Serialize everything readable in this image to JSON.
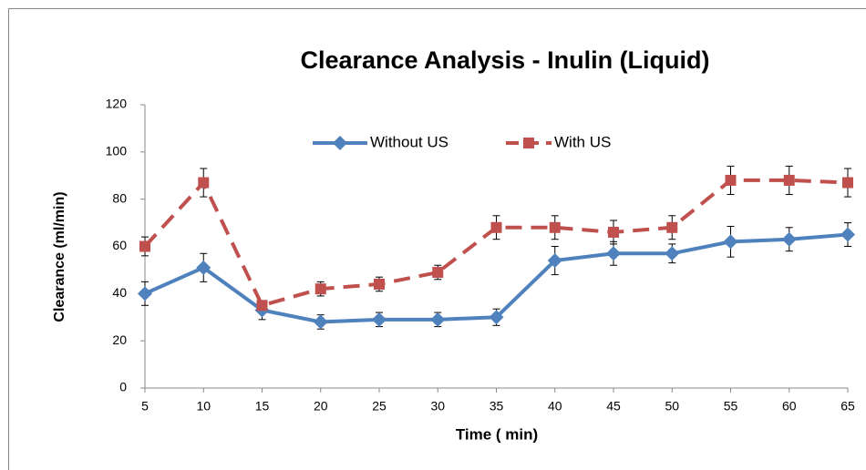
{
  "chart_data": {
    "type": "line",
    "title": "Clearance Analysis - Inulin (Liquid)",
    "xlabel": "Time ( min)",
    "ylabel": "Clearance  (ml/min)",
    "x": [
      5,
      10,
      15,
      20,
      25,
      30,
      35,
      40,
      45,
      50,
      55,
      60,
      65
    ],
    "xlim": [
      5,
      65
    ],
    "xticks": [
      5,
      10,
      15,
      20,
      25,
      30,
      35,
      40,
      45,
      50,
      55,
      60,
      65
    ],
    "ylim": [
      0,
      120
    ],
    "yticks": [
      0,
      20,
      40,
      60,
      80,
      100,
      120
    ],
    "grid": false,
    "legend": "top",
    "series": [
      {
        "name": "Without US",
        "color": "#4f81bd",
        "marker": "diamond",
        "dash": false,
        "values": [
          40,
          51,
          33,
          28,
          29,
          29,
          30,
          54,
          57,
          57,
          62,
          63,
          65
        ],
        "errors": [
          5,
          6,
          4,
          3,
          3,
          3,
          3.5,
          6,
          5,
          4,
          6.5,
          5,
          5
        ]
      },
      {
        "name": "With US",
        "color": "#c0504d",
        "marker": "square",
        "dash": true,
        "values": [
          60,
          87,
          35,
          42,
          44,
          49,
          68,
          68,
          66,
          68,
          88,
          88,
          87
        ],
        "errors": [
          4,
          6,
          2,
          3,
          3,
          3,
          5,
          5,
          5,
          5,
          6,
          6,
          6
        ]
      }
    ]
  }
}
